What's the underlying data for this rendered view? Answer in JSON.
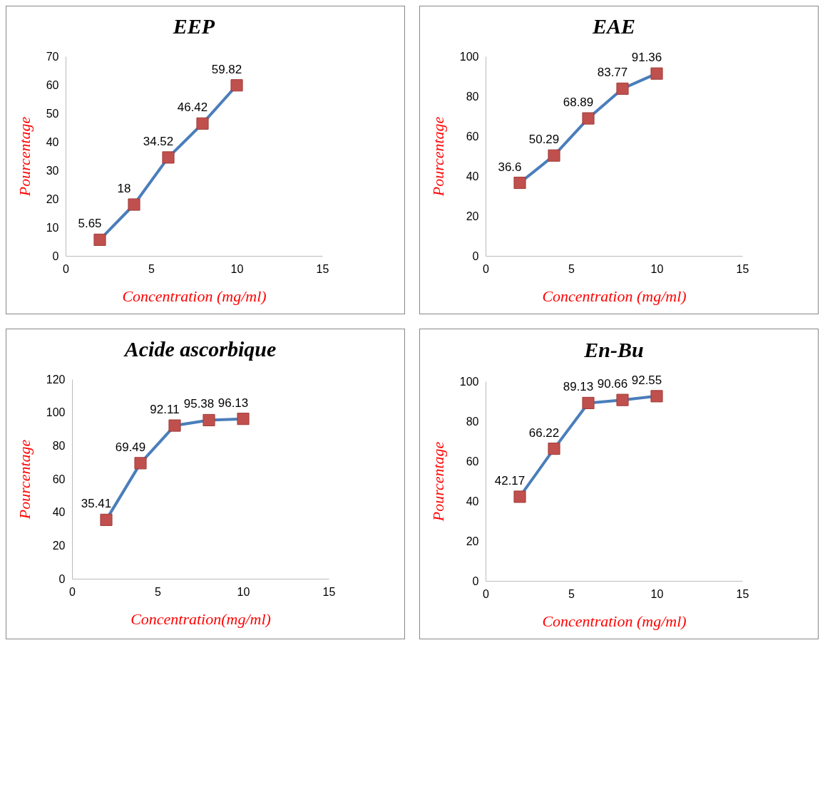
{
  "chart_data": [
    {
      "type": "line",
      "title": "EEP",
      "xlabel": "Concentration (mg/ml)",
      "ylabel": "Pourcentage",
      "x": [
        2,
        4,
        6,
        8,
        10
      ],
      "series": [
        {
          "color": "#4a7ebb",
          "colors": [
            "#c0504d",
            "#c0504d",
            "#c0504d",
            "#c0504d",
            "#c0504d"
          ],
          "values": [
            5.65,
            18,
            34.52,
            46.42,
            59.82
          ]
        }
      ],
      "xlim": [
        0,
        15
      ],
      "xticks": [
        0,
        5,
        10,
        15
      ],
      "ylim": [
        0,
        70
      ],
      "yticks": [
        0,
        10,
        20,
        30,
        40,
        50,
        60,
        70
      ],
      "grid": false,
      "marker": "square",
      "data_labels": true
    },
    {
      "type": "line",
      "title": "EAE",
      "xlabel": "Concentration (mg/ml)",
      "ylabel": "Pourcentage",
      "x": [
        2,
        4,
        6,
        8,
        10
      ],
      "series": [
        {
          "color": "#4a7ebb",
          "colors": [
            "#c0504d",
            "#c0504d",
            "#c0504d",
            "#c0504d",
            "#c0504d"
          ],
          "values": [
            36.6,
            50.29,
            68.89,
            83.77,
            91.36
          ]
        }
      ],
      "xlim": [
        0,
        15
      ],
      "xticks": [
        0,
        5,
        10,
        15
      ],
      "ylim": [
        0,
        100
      ],
      "yticks": [
        0,
        20,
        40,
        60,
        80,
        100
      ],
      "grid": false,
      "marker": "square",
      "data_labels": true
    },
    {
      "type": "line",
      "title": "Acide ascorbique",
      "xlabel": "Concentration(mg/ml)",
      "ylabel": "Pourcentage",
      "x": [
        2,
        4,
        6,
        8,
        10
      ],
      "series": [
        {
          "color": "#4a7ebb",
          "colors": [
            "#c0504d",
            "#c0504d",
            "#c0504d",
            "#c0504d",
            "#c0504d"
          ],
          "values": [
            35.41,
            69.49,
            92.11,
            95.38,
            96.13
          ]
        }
      ],
      "xlim": [
        0,
        15
      ],
      "xticks": [
        0,
        5,
        10,
        15
      ],
      "ylim": [
        0,
        120
      ],
      "yticks": [
        0,
        20,
        40,
        60,
        80,
        100,
        120
      ],
      "grid": false,
      "marker": "square",
      "data_labels": true
    },
    {
      "type": "line",
      "title": "En-Bu",
      "xlabel": "Concentration (mg/ml)",
      "ylabel": "Pourcentage",
      "x": [
        2,
        4,
        6,
        8,
        10
      ],
      "series": [
        {
          "color": "#4a7ebb",
          "colors": [
            "#c0504d",
            "#c0504d",
            "#c0504d",
            "#c0504d",
            "#c0504d"
          ],
          "values": [
            42.17,
            66.22,
            89.13,
            90.66,
            92.55
          ]
        }
      ],
      "xlim": [
        0,
        15
      ],
      "xticks": [
        0,
        5,
        10,
        15
      ],
      "ylim": [
        0,
        100
      ],
      "yticks": [
        0,
        20,
        40,
        60,
        80,
        100
      ],
      "grid": false,
      "marker": "square",
      "data_labels": true
    }
  ]
}
